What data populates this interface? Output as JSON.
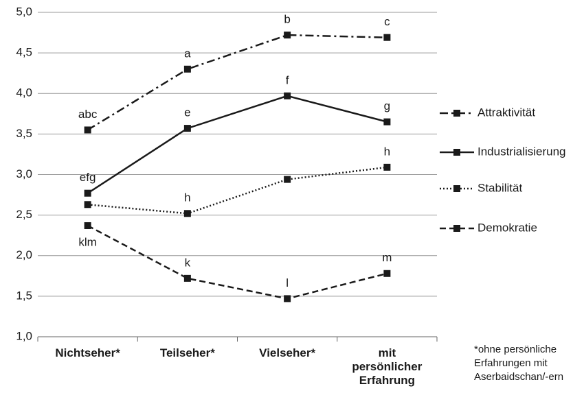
{
  "chart_data": {
    "type": "line",
    "categories": [
      "Nichtseher*",
      "Teilseher*",
      "Vielseher*",
      "mit persönlicher Erfahrung"
    ],
    "series": [
      {
        "name": "Attraktivität",
        "color": "#1a1a1a",
        "dash": "dashdot",
        "values": [
          3.55,
          4.3,
          4.72,
          4.69
        ],
        "value_labels": [
          "abc",
          "a",
          "b",
          "c"
        ]
      },
      {
        "name": "Industrialisierung",
        "color": "#1a1a1a",
        "dash": "solid",
        "values": [
          2.77,
          3.57,
          3.97,
          3.65
        ],
        "value_labels": [
          "efg",
          "e",
          "f",
          "g"
        ]
      },
      {
        "name": "Stabilität",
        "color": "#1a1a1a",
        "dash": "dotted",
        "values": [
          2.63,
          2.52,
          2.94,
          3.09
        ],
        "value_labels": [
          null,
          "h",
          null,
          "h"
        ]
      },
      {
        "name": "Demokratie",
        "color": "#1a1a1a",
        "dash": "dashed",
        "values": [
          2.37,
          1.72,
          1.47,
          1.78
        ],
        "value_labels": [
          "klm",
          "k",
          "l",
          "m"
        ]
      }
    ],
    "ylim": [
      1,
      5
    ],
    "yticks": [
      {
        "value": 1,
        "label": "1,0"
      },
      {
        "value": 1.5,
        "label": "1,5"
      },
      {
        "value": 2,
        "label": "2,0"
      },
      {
        "value": 2.5,
        "label": "2,5"
      },
      {
        "value": 3,
        "label": "3,0"
      },
      {
        "value": 3.5,
        "label": "3,5"
      },
      {
        "value": 4,
        "label": "4,0"
      },
      {
        "value": 4.5,
        "label": "4,5"
      },
      {
        "value": 5,
        "label": "5,0"
      }
    ],
    "grid": true,
    "legend": "right",
    "annotations": [
      "*ohne persönliche Erfahrungen mit Aserbaidschan/-ern"
    ]
  }
}
